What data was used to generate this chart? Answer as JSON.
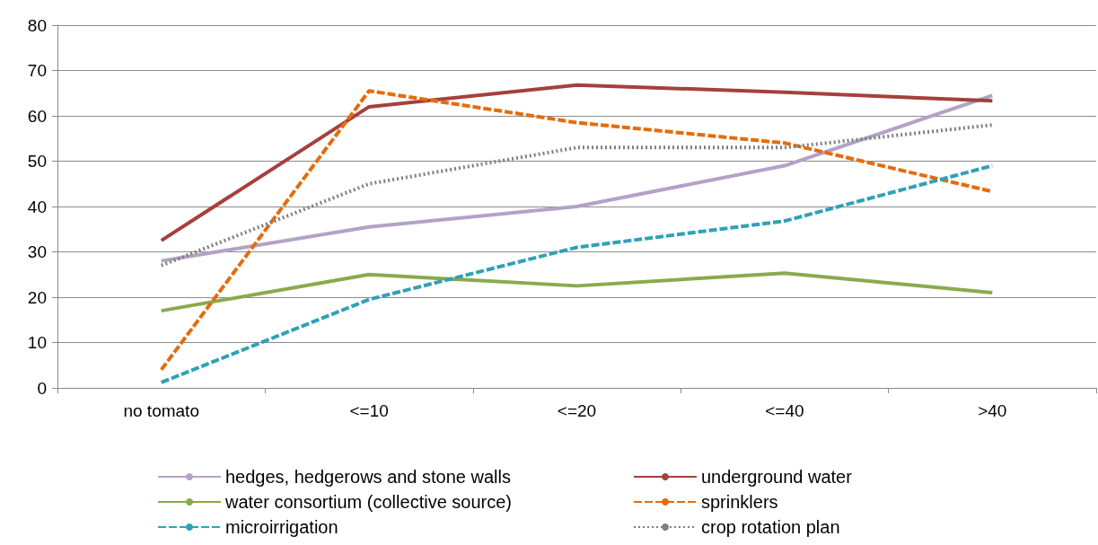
{
  "chart_data": {
    "type": "line",
    "categories": [
      "no tomato",
      "<=10",
      "<=20",
      "<=40",
      ">40"
    ],
    "ylim": [
      0,
      80
    ],
    "yticks": [
      0,
      10,
      20,
      30,
      40,
      50,
      60,
      70,
      80
    ],
    "grid": "y",
    "legend": "bottom",
    "marker": "none",
    "series": [
      {
        "name": "hedges, hedgerows and stone walls",
        "color": "#b3a2c7",
        "line_style": "solid",
        "values": [
          28,
          35.5,
          40,
          49,
          64.5
        ]
      },
      {
        "name": "underground water",
        "color": "#a5403c",
        "line_style": "solid",
        "values": [
          32.5,
          62,
          66.8,
          65.2,
          63.3
        ]
      },
      {
        "name": "water consortium (collective source)",
        "color": "#8aaa4c",
        "line_style": "solid",
        "values": [
          17,
          25,
          22.5,
          25.3,
          21
        ]
      },
      {
        "name": "sprinklers",
        "color": "#e46c0a",
        "line_style": "dashed",
        "values": [
          4,
          65.5,
          58.5,
          54,
          43.3
        ]
      },
      {
        "name": "microirrigation",
        "color": "#31a0b7",
        "line_style": "dashed",
        "values": [
          1.2,
          19.5,
          31,
          36.8,
          49
        ]
      },
      {
        "name": "crop rotation plan",
        "color": "#7f7f7f",
        "line_style": "dotted",
        "values": [
          27,
          45,
          53,
          53,
          58
        ]
      }
    ]
  }
}
